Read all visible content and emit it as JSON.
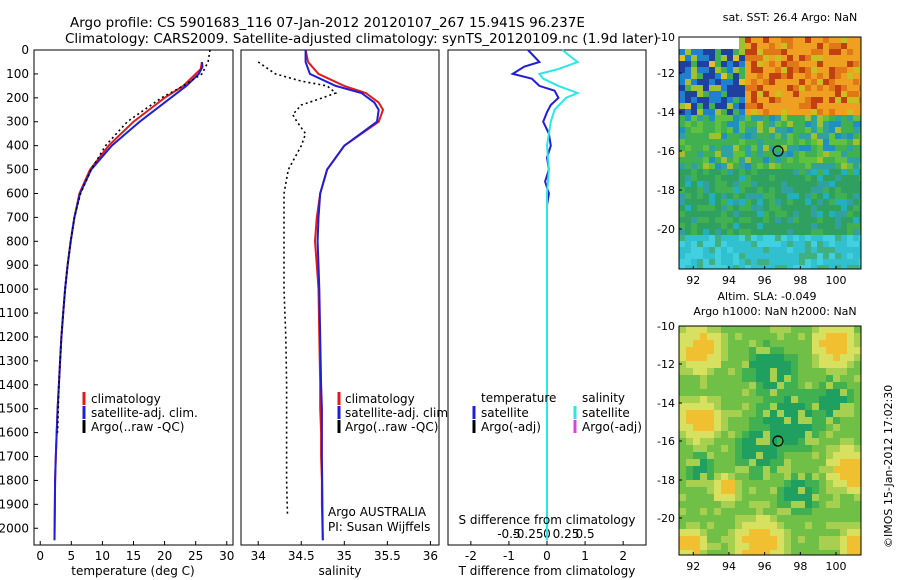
{
  "header": {
    "line1": "Argo profile: CS 5901683_116 07-Jan-2012 20120107_267 15.941S 96.237E",
    "line2": "Climatology: CARS2009. Satellite-adjusted climatology: synTS_20120109.nc (1.9d later)"
  },
  "depth_ticks": [
    0,
    100,
    200,
    300,
    400,
    500,
    600,
    700,
    800,
    900,
    1000,
    1100,
    1200,
    1300,
    1400,
    1500,
    1600,
    1700,
    1800,
    1900,
    2000
  ],
  "colors": {
    "climatology": "#e31a1c",
    "satellite": "#1f1fd6",
    "argo": "#000000",
    "sal_satellite": "#2ee6e6",
    "sal_argo": "#e040e0"
  },
  "panels": {
    "temperature": {
      "xlabel": "temperature (deg C)",
      "legend": [
        "climatology",
        "satellite-adj. clim.",
        "Argo(..raw -QC)"
      ]
    },
    "salinity": {
      "xlabel": "salinity",
      "legend": [
        "climatology",
        "satellite-adj. clim.",
        "Argo(..raw -QC)"
      ],
      "note1": "Argo AUSTRALIA",
      "note2": "PI: Susan Wijffels"
    },
    "difference": {
      "xlabel": "T difference from climatology",
      "s_label": "S difference from climatology",
      "legend_t_title": "temperature",
      "legend_s_title": "salinity",
      "legend_t": [
        "satellite",
        "Argo(-adj)"
      ],
      "legend_s": [
        "satellite",
        "Argo(-adj)"
      ]
    }
  },
  "maps": {
    "sst": {
      "title": "sat. SST: 26.4  Argo: NaN"
    },
    "sla": {
      "title1": "Altim. SLA: -0.049",
      "title2": "Argo h1000: NaN h2000: NaN"
    },
    "credit": "©IMOS 15-Jan-2012 17:02:30"
  },
  "chart_data": [
    {
      "type": "line",
      "title": "",
      "xlabel": "temperature (deg C)",
      "ylabel": "",
      "xlim": [
        -1,
        31
      ],
      "ylim": [
        0,
        2070
      ],
      "y_inverted": true,
      "xticks": [
        0,
        5,
        10,
        15,
        20,
        25,
        30
      ],
      "series": [
        {
          "name": "climatology",
          "color": "#e31a1c",
          "x": [
            26,
            25.8,
            25,
            23,
            20,
            15,
            11,
            8,
            6.3,
            5.5,
            4.9,
            4.4,
            4.0,
            3.7,
            3.4,
            3.2,
            3.0,
            2.8,
            2.65,
            2.5,
            2.4,
            2.3
          ],
          "y": [
            50,
            80,
            100,
            150,
            200,
            300,
            400,
            500,
            600,
            700,
            800,
            900,
            1000,
            1100,
            1200,
            1300,
            1400,
            1500,
            1600,
            1700,
            1800,
            2050
          ]
        },
        {
          "name": "satellite-adj. clim.",
          "color": "#1f1fd6",
          "x": [
            26,
            26.1,
            25.5,
            23.5,
            21,
            16,
            11.5,
            8.2,
            6.4,
            5.5,
            4.9,
            4.4,
            4.0,
            3.7,
            3.4,
            3.2,
            3.0,
            2.8,
            2.65,
            2.5,
            2.4,
            2.3
          ],
          "y": [
            50,
            70,
            100,
            150,
            200,
            300,
            400,
            500,
            600,
            700,
            800,
            900,
            1000,
            1100,
            1200,
            1300,
            1400,
            1500,
            1600,
            1700,
            1800,
            2050
          ]
        },
        {
          "name": "Argo(..raw -QC)",
          "color": "#000000",
          "dash": true,
          "x": [
            27.3,
            27,
            26,
            23,
            19.5,
            14,
            10.5,
            8.2,
            6.5,
            5.5,
            4.9,
            4.4,
            4.0,
            3.7,
            3.4,
            3.2,
            3.0,
            2.9,
            2.8
          ],
          "y": [
            0,
            50,
            100,
            150,
            200,
            300,
            400,
            500,
            600,
            700,
            800,
            900,
            1000,
            1100,
            1200,
            1300,
            1400,
            1500,
            1600
          ]
        }
      ]
    },
    {
      "type": "line",
      "title": "",
      "xlabel": "salinity",
      "ylabel": "",
      "xlim": [
        33.8,
        36.1
      ],
      "ylim": [
        0,
        2070
      ],
      "y_inverted": true,
      "xticks": [
        34,
        34.5,
        35,
        35.5,
        36
      ],
      "series": [
        {
          "name": "climatology",
          "color": "#e31a1c",
          "x": [
            34.55,
            34.58,
            34.7,
            35.0,
            35.25,
            35.4,
            35.45,
            35.4,
            35.0,
            34.8,
            34.72,
            34.68,
            34.66,
            34.68,
            34.7,
            34.71,
            34.72,
            34.72,
            34.73,
            34.73,
            34.74,
            34.74,
            34.75
          ],
          "y": [
            0,
            50,
            100,
            150,
            180,
            220,
            250,
            300,
            400,
            500,
            600,
            700,
            800,
            900,
            1000,
            1200,
            1400,
            1500,
            1600,
            1700,
            1800,
            1900,
            2050
          ]
        },
        {
          "name": "satellite-adj. clim.",
          "color": "#1f1fd6",
          "x": [
            34.55,
            34.55,
            34.6,
            34.9,
            35.2,
            35.35,
            35.4,
            35.38,
            35.0,
            34.8,
            34.72,
            34.7,
            34.69,
            34.7,
            34.71,
            34.72,
            34.73,
            34.74,
            34.74,
            34.74,
            34.75
          ],
          "y": [
            0,
            50,
            100,
            150,
            180,
            220,
            250,
            300,
            400,
            500,
            600,
            700,
            800,
            900,
            1000,
            1200,
            1400,
            1500,
            1600,
            1700,
            2050
          ]
        },
        {
          "name": "Argo(..raw -QC)",
          "color": "#000000",
          "dash": true,
          "x": [
            34.0,
            34.2,
            34.5,
            34.8,
            34.9,
            34.75,
            34.5,
            34.4,
            34.45,
            34.55,
            34.5,
            34.35,
            34.3,
            34.3,
            34.3,
            34.3,
            34.3,
            34.32,
            34.33,
            34.33,
            34.33,
            34.34
          ],
          "y": [
            50,
            100,
            130,
            150,
            180,
            200,
            230,
            270,
            300,
            350,
            400,
            500,
            600,
            700,
            800,
            900,
            1000,
            1200,
            1400,
            1600,
            1800,
            1950
          ]
        }
      ]
    },
    {
      "type": "line",
      "title": "",
      "xlabel": "T difference from climatology",
      "ylabel": "",
      "xlim": [
        -2.6,
        2.6
      ],
      "ylim": [
        0,
        2070
      ],
      "y_inverted": true,
      "xticks": [
        -2,
        -1,
        0,
        1,
        2
      ],
      "secondary_xlabel": "S difference from climatology",
      "secondary_xticks": [
        "-0.5",
        "-0.25",
        "0",
        "0.25",
        "0.5"
      ],
      "series": [
        {
          "name": "satellite (temperature)",
          "color": "#1f1fd6",
          "x": [
            -0.5,
            -0.2,
            -0.6,
            -0.9,
            -0.4,
            -0.2,
            0.2,
            0.3,
            0.1,
            0.0,
            -0.1,
            0.05,
            0.1,
            0.0,
            0.05,
            -0.05,
            0.05,
            0.0,
            0.0,
            0.0,
            0.0,
            0.0,
            0.0
          ],
          "y": [
            0,
            50,
            70,
            100,
            120,
            150,
            170,
            200,
            230,
            260,
            300,
            350,
            400,
            450,
            500,
            550,
            600,
            650,
            700,
            800,
            900,
            1000,
            2050
          ]
        },
        {
          "name": "satellite (salinity)",
          "color": "#2ee6e6",
          "x": [
            0.4,
            0.8,
            0.3,
            -0.2,
            -0.1,
            0.3,
            0.8,
            0.5,
            0.2,
            0.1,
            0.05,
            0.0,
            0.05,
            0.0,
            0.0,
            0.0,
            0.0,
            0.0
          ],
          "y": [
            0,
            50,
            80,
            100,
            120,
            150,
            180,
            200,
            250,
            300,
            350,
            400,
            500,
            600,
            700,
            800,
            1000,
            2050
          ]
        }
      ]
    }
  ]
}
